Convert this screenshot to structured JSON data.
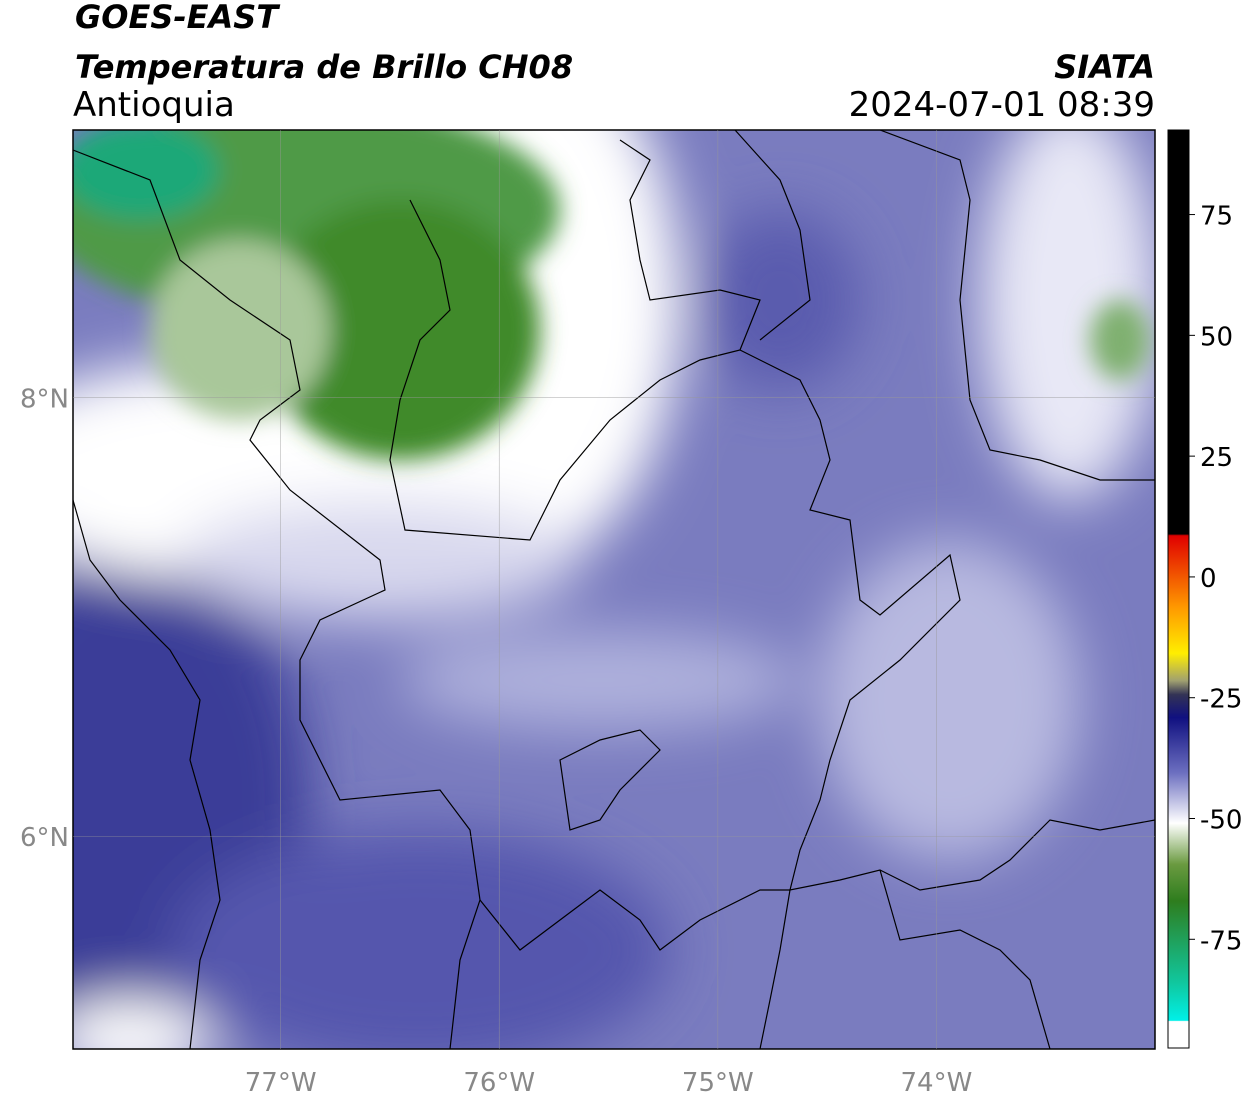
{
  "header": {
    "title": "GOES-EAST",
    "subtitle": "Temperatura de Brillo CH08",
    "region": "Antioquia",
    "source": "SIATA",
    "datetime": "2024-07-01 08:39"
  },
  "map": {
    "xlim": [
      -77.95,
      -73.0
    ],
    "ylim": [
      5.03,
      9.22
    ],
    "xticks": [
      {
        "value": -77,
        "label": "77°W"
      },
      {
        "value": -76,
        "label": "76°W"
      },
      {
        "value": -75,
        "label": "75°W"
      },
      {
        "value": -74,
        "label": "74°W"
      }
    ],
    "yticks": [
      {
        "value": 6,
        "label": "6°N"
      },
      {
        "value": 8,
        "label": "8°N"
      }
    ],
    "grid": true
  },
  "colorbar": {
    "ylim": [
      -97.5,
      92.5
    ],
    "ticks": [
      75,
      50,
      25,
      0,
      -25,
      -50,
      -75
    ]
  }
}
